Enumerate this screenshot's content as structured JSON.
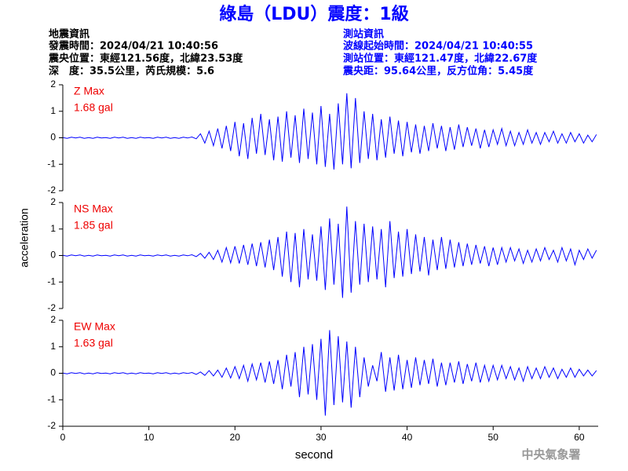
{
  "title": "綠島（LDU）震度：1級",
  "earthquake_info": {
    "heading": "地震資訊",
    "lines": [
      "發震時間：2024/04/21 10:40:56",
      "震央位置：東經121.56度，北緯23.53度",
      "深　度：35.5公里，芮氏規模：5.6"
    ]
  },
  "station_info": {
    "heading": "測站資訊",
    "lines": [
      "波線起始時間：2024/04/21 10:40:55",
      "測站位置：東經121.47度，北緯22.67度",
      "震央距：95.64公里，反方位角：5.45度"
    ]
  },
  "y_label": "acceleration",
  "x_label": "second",
  "footer": "中央氣象署",
  "chart_data": [
    {
      "type": "line",
      "label": "Z Max",
      "max_label": "1.68 gal",
      "xlim": [
        0,
        62.2
      ],
      "ylim": [
        -2,
        2
      ],
      "yticks": [
        -2,
        -1,
        0,
        1,
        2
      ],
      "x": [
        0,
        0.5,
        1,
        1.5,
        2,
        2.5,
        3,
        3.5,
        4,
        4.5,
        5,
        5.5,
        6,
        6.5,
        7,
        7.5,
        8,
        8.5,
        9,
        9.5,
        10,
        10.5,
        11,
        11.5,
        12,
        12.5,
        13,
        13.5,
        14,
        14.5,
        15,
        15.5,
        16,
        16.5,
        17,
        17.5,
        18,
        18.5,
        19,
        19.5,
        20,
        20.5,
        21,
        21.5,
        22,
        22.5,
        23,
        23.5,
        24,
        24.5,
        25,
        25.5,
        26,
        26.5,
        27,
        27.5,
        28,
        28.5,
        29,
        29.5,
        30,
        30.5,
        31,
        31.5,
        32,
        32.5,
        33,
        33.5,
        34,
        34.5,
        35,
        35.5,
        36,
        36.5,
        37,
        37.5,
        38,
        38.5,
        39,
        39.5,
        40,
        40.5,
        41,
        41.5,
        42,
        42.5,
        43,
        43.5,
        44,
        44.5,
        45,
        45.5,
        46,
        46.5,
        47,
        47.5,
        48,
        48.5,
        49,
        49.5,
        50,
        50.5,
        51,
        51.5,
        52,
        52.5,
        53,
        53.5,
        54,
        54.5,
        55,
        55.5,
        56,
        56.5,
        57,
        57.5,
        58,
        58.5,
        59,
        59.5,
        60,
        60.5,
        61,
        61.5,
        62
      ],
      "series": [
        {
          "color": "#0000ff",
          "values": [
            0.01,
            -0.02,
            0.02,
            -0.01,
            0.02,
            -0.02,
            0.01,
            -0.02,
            0.02,
            -0.01,
            0.01,
            -0.02,
            0.02,
            -0.01,
            0.02,
            -0.02,
            0.01,
            -0.02,
            0.02,
            -0.01,
            0.01,
            -0.02,
            0.02,
            -0.01,
            0.02,
            -0.02,
            0.01,
            -0.02,
            0.02,
            -0.01,
            0.03,
            -0.04,
            0.15,
            -0.2,
            0.25,
            -0.3,
            0.35,
            -0.4,
            0.45,
            -0.5,
            0.6,
            -0.7,
            0.55,
            -0.8,
            0.75,
            -0.6,
            0.9,
            -0.65,
            0.7,
            -0.85,
            0.8,
            -0.9,
            1.0,
            -0.75,
            0.85,
            -0.95,
            1.1,
            -0.8,
            0.95,
            -1.0,
            1.2,
            -1.1,
            0.9,
            -1.2,
            1.3,
            -1.0,
            1.68,
            -1.15,
            1.5,
            -0.95,
            1.0,
            -0.8,
            0.9,
            -0.85,
            0.7,
            -0.75,
            0.8,
            -0.6,
            0.65,
            -0.7,
            0.6,
            -0.55,
            0.5,
            -0.6,
            0.45,
            -0.5,
            0.55,
            -0.4,
            0.45,
            -0.5,
            0.4,
            -0.45,
            0.5,
            -0.35,
            0.4,
            -0.3,
            0.35,
            -0.4,
            0.3,
            -0.35,
            0.3,
            -0.25,
            0.35,
            -0.3,
            0.25,
            -0.3,
            0.2,
            -0.25,
            0.3,
            -0.2,
            0.2,
            -0.25,
            0.2,
            -0.15,
            0.25,
            -0.2,
            0.15,
            -0.2,
            0.2,
            -0.15,
            0.15,
            -0.2,
            0.1,
            -0.15,
            0.12
          ]
        }
      ]
    },
    {
      "type": "line",
      "label": "NS Max",
      "max_label": "1.85 gal",
      "xlim": [
        0,
        62.2
      ],
      "ylim": [
        -2,
        2
      ],
      "yticks": [
        -2,
        -1,
        0,
        1,
        2
      ],
      "x": [
        0,
        0.5,
        1,
        1.5,
        2,
        2.5,
        3,
        3.5,
        4,
        4.5,
        5,
        5.5,
        6,
        6.5,
        7,
        7.5,
        8,
        8.5,
        9,
        9.5,
        10,
        10.5,
        11,
        11.5,
        12,
        12.5,
        13,
        13.5,
        14,
        14.5,
        15,
        15.5,
        16,
        16.5,
        17,
        17.5,
        18,
        18.5,
        19,
        19.5,
        20,
        20.5,
        21,
        21.5,
        22,
        22.5,
        23,
        23.5,
        24,
        24.5,
        25,
        25.5,
        26,
        26.5,
        27,
        27.5,
        28,
        28.5,
        29,
        29.5,
        30,
        30.5,
        31,
        31.5,
        32,
        32.5,
        33,
        33.5,
        34,
        34.5,
        35,
        35.5,
        36,
        36.5,
        37,
        37.5,
        38,
        38.5,
        39,
        39.5,
        40,
        40.5,
        41,
        41.5,
        42,
        42.5,
        43,
        43.5,
        44,
        44.5,
        45,
        45.5,
        46,
        46.5,
        47,
        47.5,
        48,
        48.5,
        49,
        49.5,
        50,
        50.5,
        51,
        51.5,
        52,
        52.5,
        53,
        53.5,
        54,
        54.5,
        55,
        55.5,
        56,
        56.5,
        57,
        57.5,
        58,
        58.5,
        59,
        59.5,
        60,
        60.5,
        61,
        61.5,
        62
      ],
      "series": [
        {
          "color": "#0000ff",
          "values": [
            0.01,
            -0.02,
            0.02,
            -0.01,
            0.02,
            -0.02,
            0.01,
            -0.02,
            0.02,
            -0.01,
            0.01,
            -0.02,
            0.02,
            -0.01,
            0.02,
            -0.02,
            0.01,
            -0.02,
            0.02,
            -0.01,
            0.01,
            -0.02,
            0.02,
            -0.01,
            0.02,
            -0.02,
            0.01,
            -0.02,
            0.02,
            -0.01,
            0.03,
            -0.04,
            0.08,
            -0.1,
            0.12,
            -0.15,
            0.2,
            -0.25,
            0.3,
            -0.28,
            0.35,
            -0.3,
            0.4,
            -0.35,
            0.45,
            -0.4,
            0.5,
            -0.45,
            0.6,
            -0.55,
            0.7,
            -0.8,
            0.9,
            -1.0,
            0.85,
            -1.2,
            1.0,
            -0.9,
            0.8,
            -0.95,
            1.1,
            -1.3,
            1.4,
            -1.1,
            1.2,
            -1.6,
            1.85,
            -1.4,
            1.3,
            -1.1,
            1.2,
            -1.0,
            1.1,
            -0.9,
            1.0,
            -1.2,
            1.3,
            -0.85,
            0.9,
            -0.8,
            1.0,
            -0.7,
            0.8,
            -0.6,
            0.7,
            -0.75,
            0.6,
            -0.55,
            0.7,
            -0.5,
            0.6,
            -0.45,
            0.5,
            -0.4,
            0.45,
            -0.35,
            0.4,
            -0.3,
            0.35,
            -0.4,
            0.3,
            -0.35,
            0.3,
            -0.25,
            0.3,
            -0.2,
            0.25,
            -0.3,
            0.2,
            -0.25,
            0.25,
            -0.2,
            0.3,
            -0.15,
            0.2,
            -0.25,
            0.3,
            -0.2,
            0.25,
            -0.35,
            0.2,
            -0.15,
            0.25,
            -0.1,
            0.2
          ]
        }
      ]
    },
    {
      "type": "line",
      "label": "EW Max",
      "max_label": "1.63 gal",
      "xlim": [
        0,
        62.2
      ],
      "ylim": [
        -2,
        2
      ],
      "yticks": [
        -2,
        -1,
        0,
        1,
        2
      ],
      "xticks": [
        0,
        10,
        20,
        30,
        40,
        50,
        60
      ],
      "x": [
        0,
        0.5,
        1,
        1.5,
        2,
        2.5,
        3,
        3.5,
        4,
        4.5,
        5,
        5.5,
        6,
        6.5,
        7,
        7.5,
        8,
        8.5,
        9,
        9.5,
        10,
        10.5,
        11,
        11.5,
        12,
        12.5,
        13,
        13.5,
        14,
        14.5,
        15,
        15.5,
        16,
        16.5,
        17,
        17.5,
        18,
        18.5,
        19,
        19.5,
        20,
        20.5,
        21,
        21.5,
        22,
        22.5,
        23,
        23.5,
        24,
        24.5,
        25,
        25.5,
        26,
        26.5,
        27,
        27.5,
        28,
        28.5,
        29,
        29.5,
        30,
        30.5,
        31,
        31.5,
        32,
        32.5,
        33,
        33.5,
        34,
        34.5,
        35,
        35.5,
        36,
        36.5,
        37,
        37.5,
        38,
        38.5,
        39,
        39.5,
        40,
        40.5,
        41,
        41.5,
        42,
        42.5,
        43,
        43.5,
        44,
        44.5,
        45,
        45.5,
        46,
        46.5,
        47,
        47.5,
        48,
        48.5,
        49,
        49.5,
        50,
        50.5,
        51,
        51.5,
        52,
        52.5,
        53,
        53.5,
        54,
        54.5,
        55,
        55.5,
        56,
        56.5,
        57,
        57.5,
        58,
        58.5,
        59,
        59.5,
        60,
        60.5,
        61,
        61.5,
        62
      ],
      "series": [
        {
          "color": "#0000ff",
          "values": [
            0.01,
            -0.02,
            0.02,
            -0.01,
            0.02,
            -0.02,
            0.01,
            -0.02,
            0.02,
            -0.01,
            0.01,
            -0.02,
            0.02,
            -0.01,
            0.02,
            -0.02,
            0.01,
            -0.02,
            0.02,
            -0.01,
            0.01,
            -0.02,
            0.02,
            -0.01,
            0.02,
            -0.02,
            0.01,
            -0.02,
            0.02,
            -0.01,
            0.03,
            -0.04,
            0.05,
            -0.08,
            0.1,
            -0.1,
            0.12,
            -0.15,
            0.2,
            -0.18,
            0.25,
            -0.2,
            0.3,
            -0.3,
            0.35,
            -0.25,
            0.4,
            -0.35,
            0.45,
            -0.4,
            0.5,
            -0.6,
            0.7,
            -0.5,
            0.8,
            -0.9,
            1.0,
            -0.8,
            1.1,
            -1.0,
            1.3,
            -1.6,
            1.63,
            -1.2,
            1.4,
            -1.1,
            1.2,
            -1.3,
            1.0,
            -0.9,
            0.6,
            -0.5,
            0.3,
            -0.3,
            0.8,
            -0.7,
            0.6,
            -0.65,
            0.7,
            -0.6,
            0.5,
            -0.55,
            0.6,
            -0.45,
            0.5,
            -0.4,
            0.55,
            -0.5,
            0.4,
            -0.45,
            0.4,
            -0.35,
            0.45,
            -0.4,
            0.35,
            -0.3,
            0.4,
            -0.35,
            0.3,
            -0.3,
            0.3,
            -0.25,
            0.3,
            -0.2,
            0.25,
            -0.25,
            0.2,
            -0.3,
            0.25,
            -0.2,
            0.2,
            -0.2,
            0.25,
            -0.15,
            0.2,
            -0.2,
            0.15,
            -0.15,
            0.2,
            -0.15,
            0.15,
            -0.1,
            0.12,
            -0.1,
            0.1
          ]
        }
      ]
    }
  ]
}
